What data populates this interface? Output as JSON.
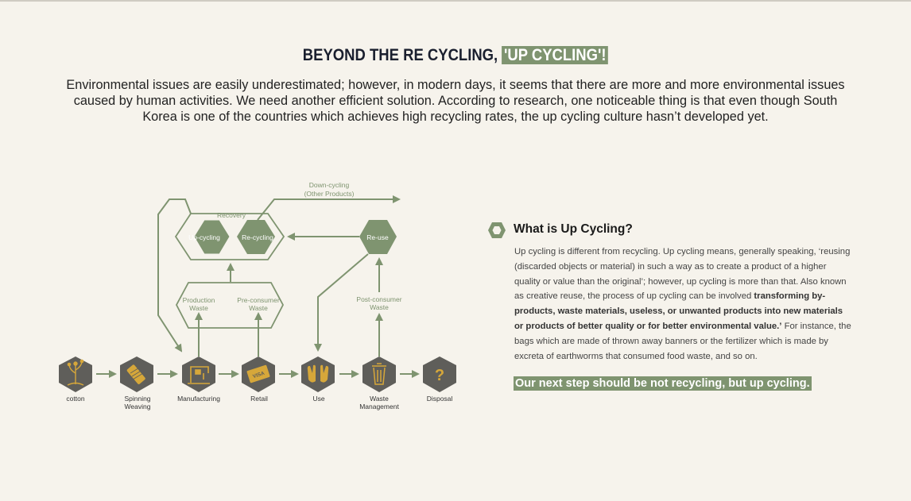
{
  "header": {
    "title_prefix": "BEYOND THE RE CYCLING, ",
    "title_highlight": "'UP CYCLING'!",
    "intro": "Environmental issues are easily underestimated; however, in modern days, it seems that there are more and more environmental issues caused by human activities. We need another efficient solution. According to research, one noticeable thing is that even though South Korea is one of the countries which achieves high recycling rates, the up cycling culture hasn’t developed yet."
  },
  "diagram": {
    "stages": [
      {
        "label": "cotton",
        "icon": "plant-icon"
      },
      {
        "label": "Spinning",
        "label2": "Weaving",
        "icon": "spool-icon"
      },
      {
        "label": "Manufacturing",
        "icon": "sewing-machine-icon"
      },
      {
        "label": "Retail",
        "icon": "credit-card-icon"
      },
      {
        "label": "Use",
        "icon": "hands-icon"
      },
      {
        "label": "Waste",
        "label2": "Management",
        "icon": "trash-bin-icon"
      },
      {
        "label": "Disposal",
        "icon": "question-mark-icon",
        "glyph": "?"
      }
    ],
    "production_waste": {
      "line1": "Production",
      "line2": "Waste"
    },
    "preconsumer_waste": {
      "line1": "Pre-consumer",
      "line2": "Waste"
    },
    "postconsumer_waste": {
      "line1": "Post-consumer",
      "line2": "Waste"
    },
    "recovery": "Recovery",
    "upcycling": "Up-cycling",
    "recycling": "Re-cycling",
    "reuse": "Re-use",
    "downcycling": {
      "line1": "Down-cycling",
      "line2": "(Other Products)"
    }
  },
  "colors": {
    "accent_green": "#7f9470",
    "hex_gray": "#5f5e5a",
    "icon_gold": "#d6a73a",
    "background": "#f6f3ec"
  },
  "what": {
    "title": "What is Up Cycling?",
    "body_1": "Up cycling is different from recycling. Up cycling means, generally speaking, ‘reusing (discarded objects or material) in such a way as to create a product of a higher quality or value than the original’; however, up cycling is more than that. Also known as creative reuse, the process of up cycling can be involved ",
    "body_bold": "transforming by-products, waste materials, useless, or unwanted products into new materials or products of better quality or for better environmental value.’",
    "body_2": " For instance, the bags which are made of thrown away banners or the fertilizer which is made by excreta of earthworms that consumed food waste, and so on.",
    "next_step": "Our next step should be not recycling, but up cycling."
  }
}
